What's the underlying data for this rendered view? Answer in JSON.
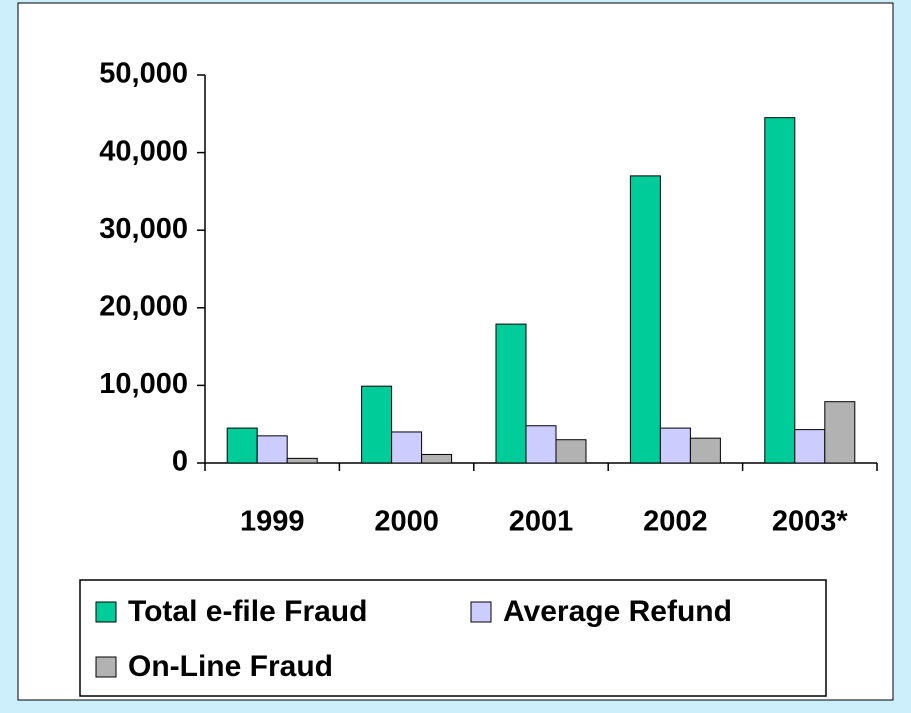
{
  "chart_data": {
    "type": "bar",
    "categories": [
      "1999",
      "2000",
      "2001",
      "2002",
      "2003*"
    ],
    "series": [
      {
        "name": "Total e-file Fraud",
        "color": "#00cc99",
        "values": [
          4500,
          9900,
          17900,
          37000,
          44500
        ]
      },
      {
        "name": "Average Refund",
        "color": "#ccccff",
        "values": [
          3500,
          4000,
          4800,
          4500,
          4300
        ]
      },
      {
        "name": "On-Line Fraud",
        "color": "#b2b2b2",
        "values": [
          600,
          1100,
          3000,
          3200,
          7900
        ]
      }
    ],
    "ylim": [
      0,
      50000
    ],
    "yticks": [
      0,
      {
        "value": 10000,
        "label": "10,000"
      },
      {
        "value": 20000,
        "label": "20,000"
      },
      {
        "value": 30000,
        "label": "30,000"
      },
      {
        "value": 40000,
        "label": "40,000"
      },
      {
        "value": 50000,
        "label": "50,000"
      }
    ],
    "grid": false
  }
}
